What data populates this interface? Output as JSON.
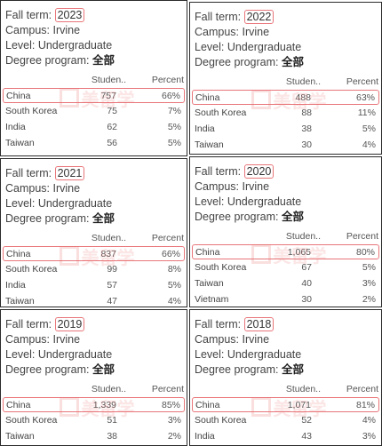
{
  "labels": {
    "fall_term": "Fall term: ",
    "campus": "Campus: Irvine",
    "level": "Level: Undergraduate",
    "degree": "Degree program: ",
    "degree_value": "全部",
    "col_students": "Studen..",
    "col_percent": "Percent"
  },
  "watermark": "美留学",
  "panels": [
    {
      "year": "2023",
      "rows": [
        {
          "country": "China",
          "students": "757",
          "percent": "66%"
        },
        {
          "country": "South Korea",
          "students": "75",
          "percent": "7%"
        },
        {
          "country": "India",
          "students": "62",
          "percent": "5%"
        },
        {
          "country": "Taiwan",
          "students": "56",
          "percent": "5%"
        }
      ]
    },
    {
      "year": "2022",
      "rows": [
        {
          "country": "China",
          "students": "488",
          "percent": "63%"
        },
        {
          "country": "South Korea",
          "students": "88",
          "percent": "11%"
        },
        {
          "country": "India",
          "students": "38",
          "percent": "5%"
        },
        {
          "country": "Taiwan",
          "students": "30",
          "percent": "4%"
        }
      ]
    },
    {
      "year": "2021",
      "rows": [
        {
          "country": "China",
          "students": "837",
          "percent": "66%"
        },
        {
          "country": "South Korea",
          "students": "99",
          "percent": "8%"
        },
        {
          "country": "India",
          "students": "57",
          "percent": "5%"
        },
        {
          "country": "Taiwan",
          "students": "47",
          "percent": "4%"
        }
      ]
    },
    {
      "year": "2020",
      "rows": [
        {
          "country": "China",
          "students": "1,065",
          "percent": "80%"
        },
        {
          "country": "South Korea",
          "students": "67",
          "percent": "5%"
        },
        {
          "country": "Taiwan",
          "students": "40",
          "percent": "3%"
        },
        {
          "country": "Vietnam",
          "students": "30",
          "percent": "2%"
        }
      ]
    },
    {
      "year": "2019",
      "rows": [
        {
          "country": "China",
          "students": "1,339",
          "percent": "85%"
        },
        {
          "country": "South Korea",
          "students": "51",
          "percent": "3%"
        },
        {
          "country": "Taiwan",
          "students": "38",
          "percent": "2%"
        }
      ]
    },
    {
      "year": "2018",
      "rows": [
        {
          "country": "China",
          "students": "1,071",
          "percent": "81%"
        },
        {
          "country": "South Korea",
          "students": "52",
          "percent": "4%"
        },
        {
          "country": "India",
          "students": "43",
          "percent": "3%"
        }
      ]
    }
  ]
}
